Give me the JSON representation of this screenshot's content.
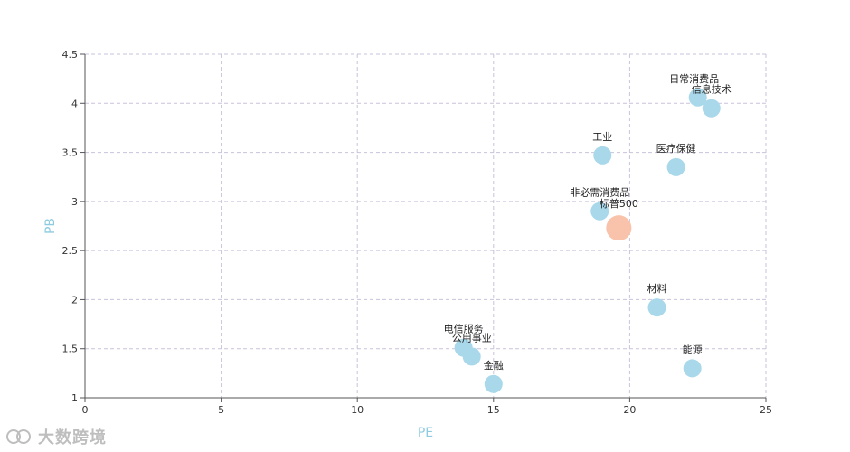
{
  "chart_data": {
    "type": "scatter",
    "xlabel": "PE",
    "ylabel": "PB",
    "xlim": [
      0,
      25
    ],
    "ylim": [
      1,
      4.5
    ],
    "xticks": [
      0,
      5,
      10,
      15,
      20,
      25
    ],
    "yticks": [
      1,
      1.5,
      2,
      2.5,
      3,
      3.5,
      4,
      4.5
    ],
    "grid": true,
    "points": [
      {
        "label": "日常消费品",
        "x": 22.5,
        "y": 4.06
      },
      {
        "label": "信息技术",
        "x": 23.0,
        "y": 3.95
      },
      {
        "label": "工业",
        "x": 19.0,
        "y": 3.47
      },
      {
        "label": "医疗保健",
        "x": 21.7,
        "y": 3.35
      },
      {
        "label": "非必需消费品",
        "x": 18.9,
        "y": 2.9
      },
      {
        "label": "标普500",
        "x": 19.6,
        "y": 2.73,
        "highlight": true
      },
      {
        "label": "材料",
        "x": 21.0,
        "y": 1.92
      },
      {
        "label": "电信服务",
        "x": 13.9,
        "y": 1.51
      },
      {
        "label": "公用事业",
        "x": 14.2,
        "y": 1.42
      },
      {
        "label": "能源",
        "x": 22.3,
        "y": 1.3
      },
      {
        "label": "金融",
        "x": 15.0,
        "y": 1.14
      }
    ],
    "colors": {
      "default": "#a8d8ea",
      "highlight": "#f9c2aa",
      "grid": "#c9c3dc",
      "axis": "#555555",
      "axis_title": "#8fcbe0"
    }
  },
  "watermark": {
    "text": "大数跨境",
    "icon": "dashuju-logo-icon"
  }
}
